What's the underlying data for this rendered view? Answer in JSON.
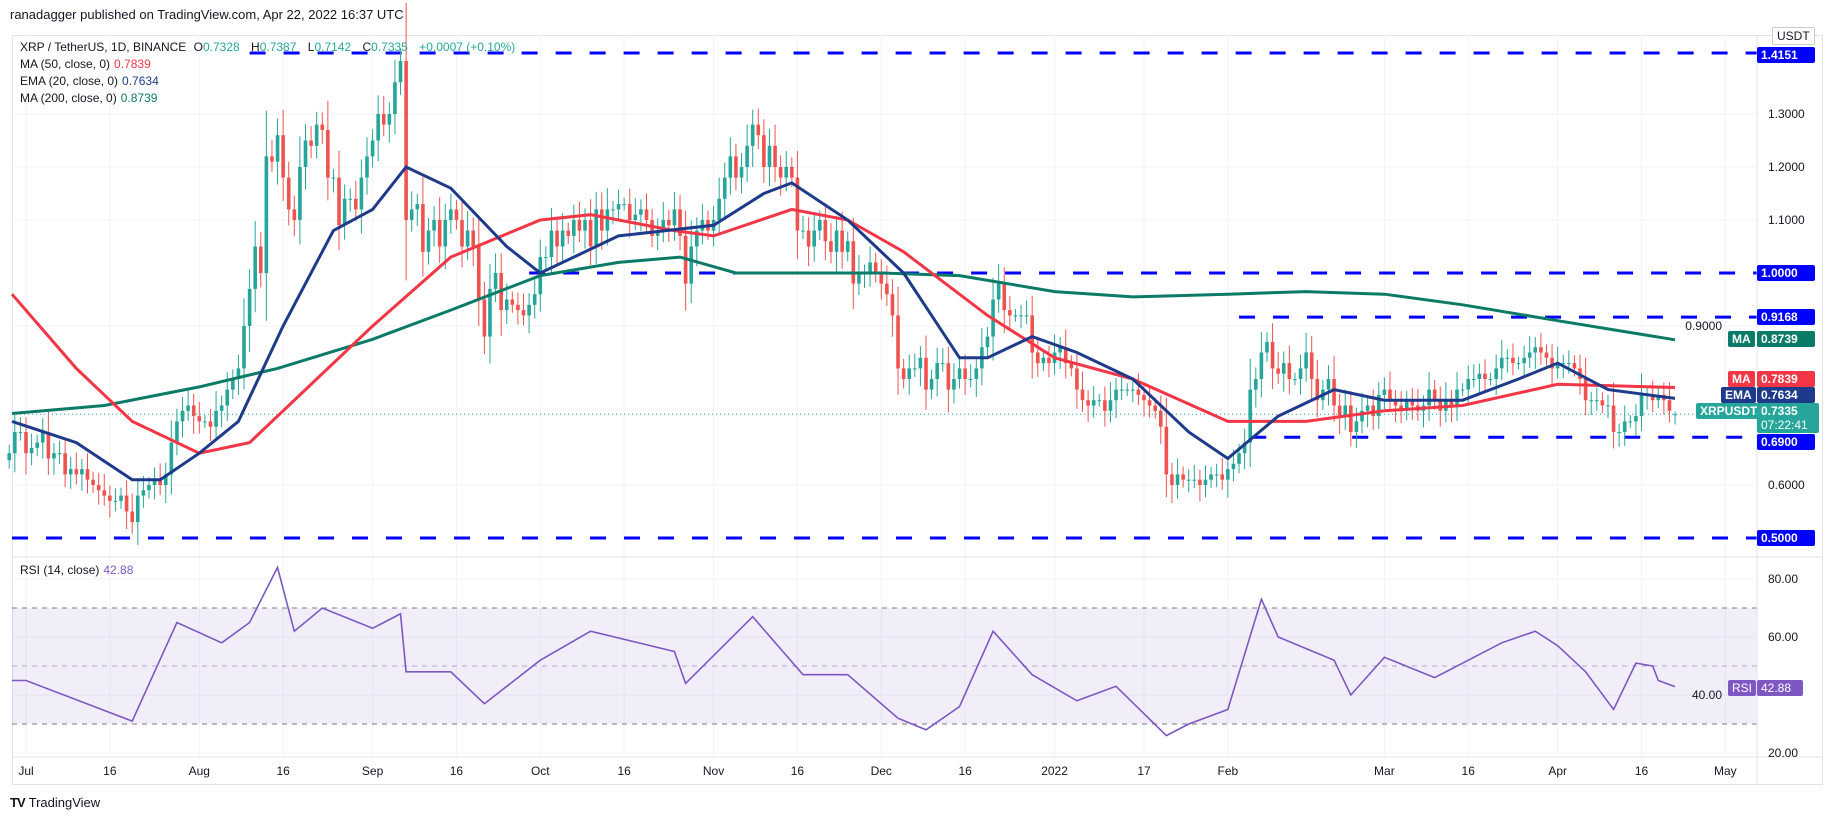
{
  "header": {
    "published": "ranadagger published on TradingView.com, Apr 22, 2022 16:37 UTC"
  },
  "legend": {
    "symbol": "XRP / TetherUS, 1D, BINANCE",
    "o_label": "O",
    "o": "0.7328",
    "h_label": "H",
    "h": "0.7387",
    "l_label": "L",
    "l": "0.7142",
    "c_label": "C",
    "c": "0.7335",
    "change": "+0.0007 (+0.10%)",
    "ma50_label": "MA (50, close, 0)",
    "ma50_value": "0.7839",
    "ema20_label": "EMA (20, close, 0)",
    "ema20_value": "0.7634",
    "ma200_label": "MA (200, close, 0)",
    "ma200_value": "0.8739",
    "rsi_label": "RSI (14, close)",
    "rsi_value": "42.88"
  },
  "currency": "USDT",
  "badges": {
    "lvl_1": "1.4151",
    "lvl_2": "1.0000",
    "lvl_3": "0.9168",
    "lvl_4": "0.6900",
    "lvl_5": "0.5000",
    "ma200_tag": "MA",
    "ma200": "0.8739",
    "ma50_tag": "MA",
    "ma50": "0.7839",
    "ema_tag": "EMA",
    "ema": "0.7634",
    "sym_tag": "XRPUSDT",
    "price": "0.7335",
    "countdown": "07:22:41",
    "rsi_tag": "RSI",
    "rsi": "42.88"
  },
  "branding": {
    "logo_text": "TradingView"
  },
  "colors": {
    "up": "#26a69a",
    "down": "#ef5350",
    "ma50": "#f23645",
    "ema20": "#1e3a8a",
    "ma200": "#0b7a66",
    "level": "#0000ff",
    "rsi": "#7e57c2"
  },
  "chart_data": {
    "type": "candlestick",
    "symbol": "XRPUSDT",
    "interval": "1D",
    "ylim": [
      0.48,
      1.43
    ],
    "price_ticks": [
      "1.3000",
      "1.2000",
      "1.1000",
      "0.9000",
      "0.6000"
    ],
    "horizontal_levels": [
      {
        "price": 1.4151,
        "from": "2021-08-10"
      },
      {
        "price": 1.0,
        "from": "2021-09-29"
      },
      {
        "price": 0.9168,
        "from": "2022-02-03"
      },
      {
        "price": 0.69,
        "from": "2022-02-05"
      },
      {
        "price": 0.5,
        "from": "2021-06-28"
      }
    ],
    "last_candle": {
      "date": "2022-04-22",
      "open": 0.7328,
      "high": 0.7387,
      "low": 0.7142,
      "close": 0.7335
    },
    "daily_closes": [
      {
        "month": "2021-06",
        "first_day": 28,
        "close": [
          0.66,
          0.7,
          0.7
        ]
      },
      {
        "month": "2021-07",
        "first_day": 1,
        "close": [
          0.66,
          0.67,
          0.68,
          0.7,
          0.65,
          0.66,
          0.66,
          0.62,
          0.63,
          0.62,
          0.63,
          0.61,
          0.6,
          0.59,
          0.58,
          0.57,
          0.57,
          0.58,
          0.55,
          0.53,
          0.58,
          0.59,
          0.6,
          0.61,
          0.6,
          0.62,
          0.68,
          0.72,
          0.74,
          0.75,
          0.73
        ]
      },
      {
        "month": "2021-08",
        "first_day": 1,
        "close": [
          0.72,
          0.72,
          0.71,
          0.74,
          0.75,
          0.78,
          0.8,
          0.82,
          0.9,
          0.97,
          1.05,
          1.0,
          1.22,
          1.21,
          1.26,
          1.18,
          1.12,
          1.1,
          1.2,
          1.25,
          1.24,
          1.28,
          1.27,
          1.18,
          1.18,
          1.09,
          1.14,
          1.14,
          1.12,
          1.18,
          1.22
        ]
      },
      {
        "month": "2021-09",
        "first_day": 1,
        "close": [
          1.25,
          1.3,
          1.28,
          1.3,
          1.36,
          1.4,
          1.1,
          1.12,
          1.13,
          1.04,
          1.08,
          1.1,
          1.05,
          1.1,
          1.12,
          1.1,
          1.05,
          1.08,
          1.05,
          0.95,
          0.88,
          0.97,
          1.0,
          0.93,
          0.95,
          0.94,
          0.93,
          0.92,
          0.94,
          0.96
        ]
      },
      {
        "month": "2021-10",
        "first_day": 1,
        "close": [
          1.03,
          1.03,
          1.08,
          1.05,
          1.08,
          1.07,
          1.1,
          1.08,
          1.1,
          1.05,
          1.12,
          1.08,
          1.12,
          1.12,
          1.13,
          1.13,
          1.1,
          1.11,
          1.12,
          1.1,
          1.07,
          1.08,
          1.1,
          1.09,
          1.12,
          1.07,
          0.98,
          1.05,
          1.08,
          1.1,
          1.08
        ]
      },
      {
        "month": "2021-11",
        "first_day": 1,
        "close": [
          1.1,
          1.14,
          1.18,
          1.22,
          1.18,
          1.2,
          1.24,
          1.28,
          1.26,
          1.2,
          1.24,
          1.2,
          1.18,
          1.2,
          1.18,
          1.08,
          1.08,
          1.05,
          1.08,
          1.1,
          1.06,
          1.04,
          1.08,
          1.04,
          1.06,
          0.98,
          1.0,
          1.0,
          1.02,
          1.0
        ]
      },
      {
        "month": "2021-12",
        "first_day": 1,
        "close": [
          0.98,
          0.96,
          0.92,
          0.82,
          0.8,
          0.82,
          0.82,
          0.84,
          0.78,
          0.8,
          0.83,
          0.83,
          0.78,
          0.8,
          0.82,
          0.8,
          0.8,
          0.82,
          0.86,
          0.88,
          0.95,
          0.98,
          0.93,
          0.92,
          0.92,
          0.92,
          0.92,
          0.85,
          0.83,
          0.84,
          0.83
        ]
      },
      {
        "month": "2022-01",
        "first_day": 1,
        "close": [
          0.85,
          0.86,
          0.83,
          0.82,
          0.78,
          0.76,
          0.75,
          0.76,
          0.76,
          0.74,
          0.76,
          0.78,
          0.78,
          0.78,
          0.78,
          0.77,
          0.76,
          0.75,
          0.74,
          0.71,
          0.62,
          0.6,
          0.62,
          0.61,
          0.61,
          0.61,
          0.6,
          0.61,
          0.62,
          0.62,
          0.61
        ]
      },
      {
        "month": "2022-02",
        "first_day": 1,
        "close": [
          0.63,
          0.64,
          0.66,
          0.68,
          0.78,
          0.8,
          0.85,
          0.87,
          0.82,
          0.81,
          0.83,
          0.8,
          0.8,
          0.82,
          0.85,
          0.8,
          0.76,
          0.78,
          0.8,
          0.75,
          0.73,
          0.75,
          0.7,
          0.72,
          0.74,
          0.75,
          0.73,
          0.77
        ]
      },
      {
        "month": "2022-03",
        "first_day": 1,
        "close": [
          0.78,
          0.76,
          0.75,
          0.74,
          0.76,
          0.75,
          0.74,
          0.75,
          0.78,
          0.76,
          0.74,
          0.76,
          0.75,
          0.78,
          0.78,
          0.8,
          0.8,
          0.81,
          0.8,
          0.8,
          0.82,
          0.84,
          0.84,
          0.83,
          0.83,
          0.84,
          0.85,
          0.86,
          0.85,
          0.84,
          0.82
        ]
      },
      {
        "month": "2022-04",
        "first_day": 1,
        "close": [
          0.83,
          0.83,
          0.83,
          0.82,
          0.8,
          0.76,
          0.76,
          0.76,
          0.75,
          0.75,
          0.7,
          0.7,
          0.72,
          0.72,
          0.73,
          0.77,
          0.77,
          0.76,
          0.77,
          0.76,
          0.74,
          0.7335
        ]
      }
    ],
    "indicators": {
      "ma200": [
        [
          "2021-06-28",
          0.735
        ],
        [
          "2021-07-15",
          0.75
        ],
        [
          "2021-08-01",
          0.785
        ],
        [
          "2021-08-15",
          0.82
        ],
        [
          "2021-09-01",
          0.875
        ],
        [
          "2021-09-15",
          0.93
        ],
        [
          "2021-10-01",
          0.995
        ],
        [
          "2021-10-15",
          1.02
        ],
        [
          "2021-10-26",
          1.03
        ],
        [
          "2021-11-05",
          1.0
        ],
        [
          "2021-11-20",
          1.0
        ],
        [
          "2021-12-01",
          1.0
        ],
        [
          "2021-12-15",
          0.995
        ],
        [
          "2022-01-01",
          0.965
        ],
        [
          "2022-01-15",
          0.955
        ],
        [
          "2022-02-01",
          0.96
        ],
        [
          "2022-02-15",
          0.965
        ],
        [
          "2022-03-01",
          0.96
        ],
        [
          "2022-03-15",
          0.94
        ],
        [
          "2022-04-01",
          0.91
        ],
        [
          "2022-04-22",
          0.8739
        ]
      ],
      "ema20": [
        [
          "2021-06-28",
          0.72
        ],
        [
          "2021-07-10",
          0.68
        ],
        [
          "2021-07-20",
          0.61
        ],
        [
          "2021-07-25",
          0.61
        ],
        [
          "2021-08-01",
          0.66
        ],
        [
          "2021-08-08",
          0.72
        ],
        [
          "2021-08-16",
          0.9
        ],
        [
          "2021-08-25",
          1.08
        ],
        [
          "2021-09-01",
          1.12
        ],
        [
          "2021-09-07",
          1.2
        ],
        [
          "2021-09-15",
          1.16
        ],
        [
          "2021-09-25",
          1.05
        ],
        [
          "2021-10-01",
          1.0
        ],
        [
          "2021-10-15",
          1.07
        ],
        [
          "2021-11-01",
          1.09
        ],
        [
          "2021-11-10",
          1.15
        ],
        [
          "2021-11-15",
          1.17
        ],
        [
          "2021-11-25",
          1.1
        ],
        [
          "2021-12-05",
          1.0
        ],
        [
          "2021-12-15",
          0.84
        ],
        [
          "2021-12-20",
          0.84
        ],
        [
          "2021-12-28",
          0.88
        ],
        [
          "2022-01-05",
          0.85
        ],
        [
          "2022-01-15",
          0.8
        ],
        [
          "2022-01-25",
          0.7
        ],
        [
          "2022-02-01",
          0.65
        ],
        [
          "2022-02-10",
          0.73
        ],
        [
          "2022-02-20",
          0.78
        ],
        [
          "2022-03-01",
          0.76
        ],
        [
          "2022-03-15",
          0.76
        ],
        [
          "2022-03-25",
          0.8
        ],
        [
          "2022-04-01",
          0.83
        ],
        [
          "2022-04-10",
          0.78
        ],
        [
          "2022-04-22",
          0.7634
        ]
      ],
      "ma50": [
        [
          "2021-06-28",
          0.96
        ],
        [
          "2021-07-10",
          0.82
        ],
        [
          "2021-07-20",
          0.72
        ],
        [
          "2021-08-01",
          0.66
        ],
        [
          "2021-08-10",
          0.68
        ],
        [
          "2021-08-20",
          0.78
        ],
        [
          "2021-09-01",
          0.9
        ],
        [
          "2021-09-15",
          1.03
        ],
        [
          "2021-10-01",
          1.1
        ],
        [
          "2021-10-10",
          1.11
        ],
        [
          "2021-10-25",
          1.08
        ],
        [
          "2021-11-01",
          1.07
        ],
        [
          "2021-11-15",
          1.12
        ],
        [
          "2021-11-25",
          1.1
        ],
        [
          "2021-12-05",
          1.04
        ],
        [
          "2021-12-20",
          0.92
        ],
        [
          "2022-01-01",
          0.84
        ],
        [
          "2022-01-15",
          0.8
        ],
        [
          "2022-02-01",
          0.72
        ],
        [
          "2022-02-15",
          0.72
        ],
        [
          "2022-03-01",
          0.74
        ],
        [
          "2022-03-15",
          0.75
        ],
        [
          "2022-04-01",
          0.79
        ],
        [
          "2022-04-22",
          0.7839
        ]
      ],
      "rsi": [
        [
          "2021-06-28",
          45
        ],
        [
          "2021-07-01",
          45
        ],
        [
          "2021-07-20",
          31
        ],
        [
          "2021-07-28",
          65
        ],
        [
          "2021-08-05",
          58
        ],
        [
          "2021-08-10",
          65
        ],
        [
          "2021-08-15",
          84
        ],
        [
          "2021-08-18",
          62
        ],
        [
          "2021-08-23",
          70
        ],
        [
          "2021-09-01",
          63
        ],
        [
          "2021-09-06",
          68
        ],
        [
          "2021-09-07",
          48
        ],
        [
          "2021-09-15",
          48
        ],
        [
          "2021-09-21",
          37
        ],
        [
          "2021-10-01",
          52
        ],
        [
          "2021-10-10",
          62
        ],
        [
          "2021-10-25",
          55
        ],
        [
          "2021-10-27",
          44
        ],
        [
          "2021-11-08",
          67
        ],
        [
          "2021-11-17",
          47
        ],
        [
          "2021-11-25",
          47
        ],
        [
          "2021-12-04",
          32
        ],
        [
          "2021-12-09",
          28
        ],
        [
          "2021-12-15",
          36
        ],
        [
          "2021-12-21",
          62
        ],
        [
          "2021-12-28",
          47
        ],
        [
          "2022-01-05",
          38
        ],
        [
          "2022-01-12",
          43
        ],
        [
          "2022-01-21",
          26
        ],
        [
          "2022-01-25",
          30
        ],
        [
          "2022-02-01",
          35
        ],
        [
          "2022-02-07",
          73
        ],
        [
          "2022-02-10",
          60
        ],
        [
          "2022-02-20",
          52
        ],
        [
          "2022-02-23",
          40
        ],
        [
          "2022-03-01",
          53
        ],
        [
          "2022-03-10",
          46
        ],
        [
          "2022-03-22",
          58
        ],
        [
          "2022-03-28",
          62
        ],
        [
          "2022-04-01",
          57
        ],
        [
          "2022-04-06",
          48
        ],
        [
          "2022-04-11",
          35
        ],
        [
          "2022-04-15",
          51
        ],
        [
          "2022-04-18",
          50
        ],
        [
          "2022-04-19",
          45
        ],
        [
          "2022-04-22",
          42.88
        ]
      ]
    },
    "rsi_ticks": [
      "80.00",
      "60.00",
      "40.00",
      "20.00"
    ],
    "rsi_bands": {
      "upper": 70,
      "middle": 50,
      "lower": 30
    },
    "x_ticks": [
      {
        "label": "Jul",
        "date": "2021-07-01"
      },
      {
        "label": "16",
        "date": "2021-07-16"
      },
      {
        "label": "Aug",
        "date": "2021-08-01"
      },
      {
        "label": "16",
        "date": "2021-08-16"
      },
      {
        "label": "Sep",
        "date": "2021-09-01"
      },
      {
        "label": "16",
        "date": "2021-09-16"
      },
      {
        "label": "Oct",
        "date": "2021-10-01"
      },
      {
        "label": "16",
        "date": "2021-10-16"
      },
      {
        "label": "Nov",
        "date": "2021-11-01"
      },
      {
        "label": "16",
        "date": "2021-11-16"
      },
      {
        "label": "Dec",
        "date": "2021-12-01"
      },
      {
        "label": "16",
        "date": "2021-12-16"
      },
      {
        "label": "2022",
        "date": "2022-01-01"
      },
      {
        "label": "17",
        "date": "2022-01-17"
      },
      {
        "label": "Feb",
        "date": "2022-02-01"
      },
      {
        "label": "Mar",
        "date": "2022-03-01"
      },
      {
        "label": "16",
        "date": "2022-03-16"
      },
      {
        "label": "Apr",
        "date": "2022-04-01"
      },
      {
        "label": "16",
        "date": "2022-04-16"
      },
      {
        "label": "May",
        "date": "2022-05-01"
      }
    ]
  }
}
